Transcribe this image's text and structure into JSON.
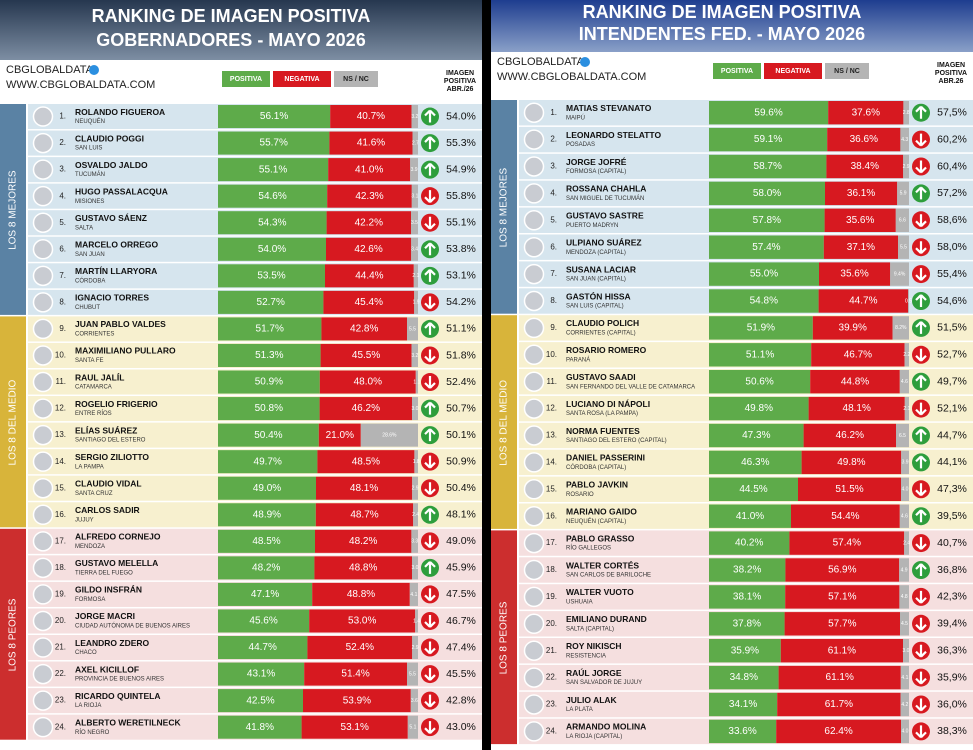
{
  "legend": [
    {
      "label": "POSITIVA",
      "color": "#5eab4a"
    },
    {
      "label": "NEGATIVA",
      "color": "#d71920"
    },
    {
      "label": "NS / NC",
      "color": "#b4b4b4"
    }
  ],
  "trend_colors": {
    "up": "#2e9e3c",
    "down": "#d71920"
  },
  "panels": [
    {
      "title": [
        "RANKING DE IMAGEN POSITIVA",
        "GOBERNADORES - MAYO 2026"
      ],
      "brand": "CBGLOBALDATA",
      "url": "WWW.CBGLOBALDATA.COM",
      "prev_header": [
        "IMAGEN",
        "POSITIVA",
        "ABR./26"
      ],
      "groups": [
        {
          "label": "LOS 8 MEJORES",
          "color": "#5a82a4",
          "bg": "#d6e5ee",
          "rows": [
            [
              "1.",
              "ROLANDO FIGUEROA",
              "NEUQUÉN",
              56.1,
              "56.1%",
              40.7,
              "40.7%",
              3.2,
              "3.2",
              "up",
              "54.0%"
            ],
            [
              "2.",
              "CLAUDIO POGGI",
              "SAN LUIS",
              55.7,
              "55.7%",
              41.6,
              "41.6%",
              2.7,
              "2.7",
              "up",
              "55.3%"
            ],
            [
              "3.",
              "OSVALDO JALDO",
              "TUCUMÁN",
              55.1,
              "55.1%",
              41.0,
              "41.0%",
              3.9,
              "3.9",
              "up",
              "54.9%"
            ],
            [
              "4.",
              "HUGO PASSALACQUA",
              "MISIONES",
              54.6,
              "54.6%",
              42.3,
              "42.3%",
              3.1,
              "3.1",
              "down",
              "55.8%"
            ],
            [
              "5.",
              "GUSTAVO SÁENZ",
              "SALTA",
              54.3,
              "54.3%",
              42.2,
              "42.2%",
              3.5,
              "3.5",
              "down",
              "55.1%"
            ],
            [
              "6.",
              "MARCELO ORREGO",
              "SAN JUAN",
              54.0,
              "54.0%",
              42.6,
              "42.6%",
              3.4,
              "3.4",
              "up",
              "53.8%"
            ],
            [
              "7.",
              "MARTÍN LLARYORA",
              "CÓRDOBA",
              53.5,
              "53.5%",
              44.4,
              "44.4%",
              2.1,
              "2.1",
              "up",
              "53.1%"
            ],
            [
              "8.",
              "IGNACIO TORRES",
              "CHUBUT",
              52.7,
              "52.7%",
              45.4,
              "45.4%",
              1.9,
              "1.9",
              "down",
              "54.2%"
            ]
          ]
        },
        {
          "label": "LOS 8 DEL MEDIO",
          "color": "#d8b43a",
          "bg": "#f7f0cf",
          "rows": [
            [
              "9.",
              "JUAN PABLO VALDES",
              "CORRIENTES",
              51.7,
              "51.7%",
              42.8,
              "42.8%",
              5.5,
              "5.5",
              "up",
              "51.1%"
            ],
            [
              "10.",
              "MAXIMILIANO PULLARO",
              "SANTA FE",
              51.3,
              "51.3%",
              45.5,
              "45.5%",
              3.2,
              "3.2",
              "down",
              "51.8%"
            ],
            [
              "11.",
              "RAUL JALÍL",
              "CATAMARCA",
              50.9,
              "50.9%",
              48.0,
              "48.0%",
              1.1,
              "1.1",
              "down",
              "52.4%"
            ],
            [
              "12.",
              "ROGELIO FRIGERIO",
              "ENTRE RÍOS",
              50.8,
              "50.8%",
              46.2,
              "46.2%",
              3.0,
              "3.0",
              "up",
              "50.7%"
            ],
            [
              "13.",
              "ELÍAS SUÁREZ",
              "SANTIAGO DEL ESTERO",
              50.4,
              "50.4%",
              21.0,
              "21.0%",
              28.6,
              "28.6%",
              "up",
              "50.1%"
            ],
            [
              "14.",
              "SERGIO ZILIOTTO",
              "LA PAMPA",
              49.7,
              "49.7%",
              48.5,
              "48.5%",
              1.8,
              "1.8",
              "down",
              "50.9%"
            ],
            [
              "15.",
              "CLAUDIO VIDAL",
              "SANTA CRUZ",
              49.0,
              "49.0%",
              48.1,
              "48.1%",
              2.9,
              "2.9",
              "down",
              "50.4%"
            ],
            [
              "16.",
              "CARLOS SADIR",
              "JUJUY",
              48.9,
              "48.9%",
              48.7,
              "48.7%",
              2.4,
              "2.4",
              "up",
              "48.1%"
            ]
          ]
        },
        {
          "label": "LOS 8 PEORES",
          "color": "#cc2e2e",
          "bg": "#f5dfdf",
          "rows": [
            [
              "17.",
              "ALFREDO CORNEJO",
              "MENDOZA",
              48.5,
              "48.5%",
              48.2,
              "48.2%",
              3.3,
              "3.3",
              "down",
              "49.0%"
            ],
            [
              "18.",
              "GUSTAVO MELELLA",
              "TIERRA DEL FUEGO",
              48.2,
              "48.2%",
              48.8,
              "48.8%",
              3.0,
              "3.0",
              "up",
              "45.9%"
            ],
            [
              "19.",
              "GILDO INSFRÁN",
              "FORMOSA",
              47.1,
              "47.1%",
              48.8,
              "48.8%",
              4.1,
              "4.1",
              "down",
              "47.5%"
            ],
            [
              "20.",
              "JORGE MACRI",
              "CIUDAD AUTÓNOMA DE BUENOS AIRES",
              45.6,
              "45.6%",
              53.0,
              "53.0%",
              1.4,
              "1.4",
              "down",
              "46.7%"
            ],
            [
              "21.",
              "LEANDRO ZDERO",
              "CHACO",
              44.7,
              "44.7%",
              52.4,
              "52.4%",
              2.9,
              "2.9",
              "down",
              "47.4%"
            ],
            [
              "22.",
              "AXEL KICILLOF",
              "PROVINCIA DE BUENOS AIRES",
              43.1,
              "43.1%",
              51.4,
              "51.4%",
              5.5,
              "5.5",
              "down",
              "45.5%"
            ],
            [
              "23.",
              "RICARDO QUINTELA",
              "LA RIOJA",
              42.5,
              "42.5%",
              53.9,
              "53.9%",
              3.6,
              "3.6",
              "down",
              "42.8%"
            ],
            [
              "24.",
              "ALBERTO WERETILNECK",
              "RÍO NEGRO",
              41.8,
              "41.8%",
              53.1,
              "53.1%",
              5.1,
              "5.1",
              "down",
              "43.0%"
            ]
          ]
        }
      ]
    },
    {
      "title": [
        "RANKING DE IMAGEN POSITIVA",
        "INTENDENTES FED. - MAYO 2026"
      ],
      "brand": "CBGLOBALDATA",
      "url": "WWW.CBGLOBALDATA.COM",
      "prev_header": [
        "IMAGEN",
        "POSITIVA",
        "ABR.26"
      ],
      "groups": [
        {
          "label": "LOS 8 MEJORES",
          "color": "#5a82a4",
          "bg": "#d6e5ee",
          "rows": [
            [
              "1.",
              "MATIAS STEVANATO",
              "MAIPÚ",
              59.6,
              "59.6%",
              37.6,
              "37.6%",
              2.8,
              "2.8",
              "up",
              "57,5%"
            ],
            [
              "2.",
              "LEONARDO STELATTO",
              "POSADAS",
              59.1,
              "59.1%",
              36.6,
              "36.6%",
              4.3,
              "4.3",
              "down",
              "60,2%"
            ],
            [
              "3.",
              "JORGE JOFRÉ",
              "FORMOSA (CAPITAL)",
              58.7,
              "58.7%",
              38.4,
              "38.4%",
              2.9,
              "2.9",
              "down",
              "60,4%"
            ],
            [
              "4.",
              "ROSSANA CHAHLA",
              "SAN MIGUEL DE TUCUMÁN",
              58.0,
              "58.0%",
              36.1,
              "36.1%",
              5.9,
              "5.9",
              "up",
              "57,2%"
            ],
            [
              "5.",
              "GUSTAVO SASTRE",
              "PUERTO MADRYN",
              57.8,
              "57.8%",
              35.6,
              "35.6%",
              6.6,
              "6.6",
              "down",
              "58,6%"
            ],
            [
              "6.",
              "ULPIANO SUÁREZ",
              "MENDOZA (CAPITAL)",
              57.4,
              "57.4%",
              37.1,
              "37.1%",
              5.5,
              "5.5",
              "down",
              "58,0%"
            ],
            [
              "7.",
              "SUSANA LACIAR",
              "SAN JUAN (CAPITAL)",
              55.0,
              "55.0%",
              35.6,
              "35.6%",
              9.4,
              "9.4%",
              "down",
              "55,4%"
            ],
            [
              "8.",
              "GASTÓN HISSA",
              "SAN LUIS (CAPITAL)",
              54.8,
              "54.8%",
              44.7,
              "44.7%",
              0.5,
              "0.5",
              "up",
              "54,6%"
            ]
          ]
        },
        {
          "label": "LOS 8 DEL MEDIO",
          "color": "#d8b43a",
          "bg": "#f7f0cf",
          "rows": [
            [
              "9.",
              "CLAUDIO POLICH",
              "CORRIENTES (CAPITAL)",
              51.9,
              "51.9%",
              39.9,
              "39.9%",
              8.2,
              "8.2%",
              "up",
              "51,5%"
            ],
            [
              "10.",
              "ROSARIO ROMERO",
              "PARANÁ",
              51.1,
              "51.1%",
              46.7,
              "46.7%",
              2.2,
              "2.2",
              "down",
              "52,7%"
            ],
            [
              "11.",
              "GUSTAVO SAADI",
              "SAN FERNANDO DEL VALLE DE CATAMARCA",
              50.6,
              "50.6%",
              44.8,
              "44.8%",
              4.6,
              "4.6",
              "up",
              "49,7%"
            ],
            [
              "12.",
              "LUCIANO DI NÁPOLI",
              "SANTA ROSA (LA PAMPA)",
              49.8,
              "49.8%",
              48.1,
              "48.1%",
              2.1,
              "2.1",
              "down",
              "52,1%"
            ],
            [
              "13.",
              "NORMA FUENTES",
              "SANTIAGO DEL ESTERO (CAPITAL)",
              47.3,
              "47.3%",
              46.2,
              "46.2%",
              6.5,
              "6.5",
              "up",
              "44,7%"
            ],
            [
              "14.",
              "DANIEL PASSERINI",
              "CÓRDOBA (CAPITAL)",
              46.3,
              "46.3%",
              49.8,
              "49.8%",
              3.9,
              "3.9",
              "up",
              "44,1%"
            ],
            [
              "15.",
              "PABLO JAVKIN",
              "ROSARIO",
              44.5,
              "44.5%",
              51.5,
              "51.5%",
              4.0,
              "4.0",
              "down",
              "47,3%"
            ],
            [
              "16.",
              "MARIANO GAIDO",
              "NEUQUÉN (CAPITAL)",
              41.0,
              "41.0%",
              54.4,
              "54.4%",
              4.6,
              "4.6",
              "up",
              "39,5%"
            ]
          ]
        },
        {
          "label": "LOS 8 PEORES",
          "color": "#cc2e2e",
          "bg": "#f5dfdf",
          "rows": [
            [
              "17.",
              "PABLO GRASSO",
              "RÍO GALLEGOS",
              40.2,
              "40.2%",
              57.4,
              "57.4%",
              2.4,
              "2.4",
              "down",
              "40,7%"
            ],
            [
              "18.",
              "WALTER CORTÉS",
              "SAN CARLOS DE BARILOCHE",
              38.2,
              "38.2%",
              56.9,
              "56.9%",
              4.9,
              "4.9",
              "up",
              "36,8%"
            ],
            [
              "19.",
              "WALTER VUOTO",
              "USHUAIA",
              38.1,
              "38.1%",
              57.1,
              "57.1%",
              4.8,
              "4.8",
              "down",
              "42,3%"
            ],
            [
              "20.",
              "EMILIANO DURAND",
              "SALTA (CAPITAL)",
              37.8,
              "37.8%",
              57.7,
              "57.7%",
              4.5,
              "4.5",
              "down",
              "39,4%"
            ],
            [
              "21.",
              "ROY NIKISCH",
              "RESISTENCIA",
              35.9,
              "35.9%",
              61.1,
              "61.1%",
              3.0,
              "3.0",
              "down",
              "36,3%"
            ],
            [
              "22.",
              "RAÚL JORGE",
              "SAN SALVADOR DE JUJUY",
              34.8,
              "34.8%",
              61.1,
              "61.1%",
              4.1,
              "4.1",
              "down",
              "35,9%"
            ],
            [
              "23.",
              "JULIO ALAK",
              "LA PLATA",
              34.1,
              "34.1%",
              61.7,
              "61.7%",
              4.2,
              "4.2",
              "down",
              "36,0%"
            ],
            [
              "24.",
              "ARMANDO MOLINA",
              "LA RIOJA (CAPITAL)",
              33.6,
              "33.6%",
              62.4,
              "62.4%",
              4.0,
              "4.0",
              "down",
              "38,3%"
            ]
          ]
        }
      ]
    }
  ]
}
